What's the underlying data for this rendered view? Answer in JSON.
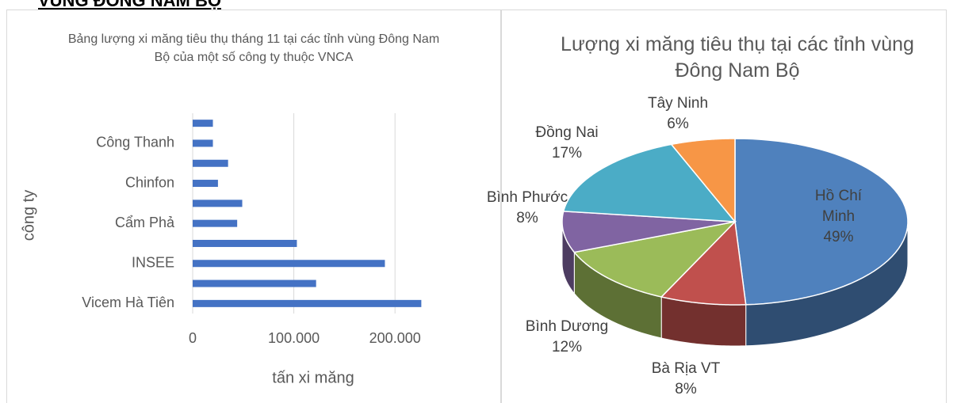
{
  "heading": "VÙNG ĐÔNG NAM BỘ",
  "chart_data": [
    {
      "type": "barh",
      "title": "Bảng lượng xi măng tiêu thụ tháng 11 tại các tỉnh vùng Đông Nam Bộ của một số công ty thuộc VNCA",
      "xlabel": "tấn xi măng",
      "ylabel": "công ty",
      "categories": [
        "Vicem Hà Tiên",
        null,
        "INSEE",
        null,
        "Cẩm Phả",
        null,
        "Chinfon",
        null,
        "Công Thanh",
        null
      ],
      "values": [
        226000,
        122000,
        190000,
        103000,
        44000,
        49000,
        25000,
        35000,
        20000,
        20000
      ],
      "color": "#4472c4",
      "xlim": [
        0,
        250000
      ],
      "xticks": [
        0,
        {
          "value": 100000,
          "label": "100.000"
        },
        {
          "value": 200000,
          "label": "200.000"
        }
      ],
      "grid": true
    },
    {
      "type": "pie3d",
      "title": "Lượng xi măng tiêu thụ tại các tỉnh vùng Đông Nam Bộ",
      "categories": [
        "Hồ Chí Minh",
        "Bà Rịa VT",
        "Bình Dương",
        "Bình Phước",
        "Đồng Nai",
        "Tây Ninh"
      ],
      "values": [
        49,
        8,
        12,
        8,
        17,
        6
      ],
      "value_labels": [
        "49%",
        "8%",
        "12%",
        "8%",
        "17%",
        "6%"
      ],
      "colors": [
        "#4f81bd",
        "#c0504d",
        "#9bbb59",
        "#8064a2",
        "#4bacc6",
        "#f79646"
      ]
    }
  ]
}
